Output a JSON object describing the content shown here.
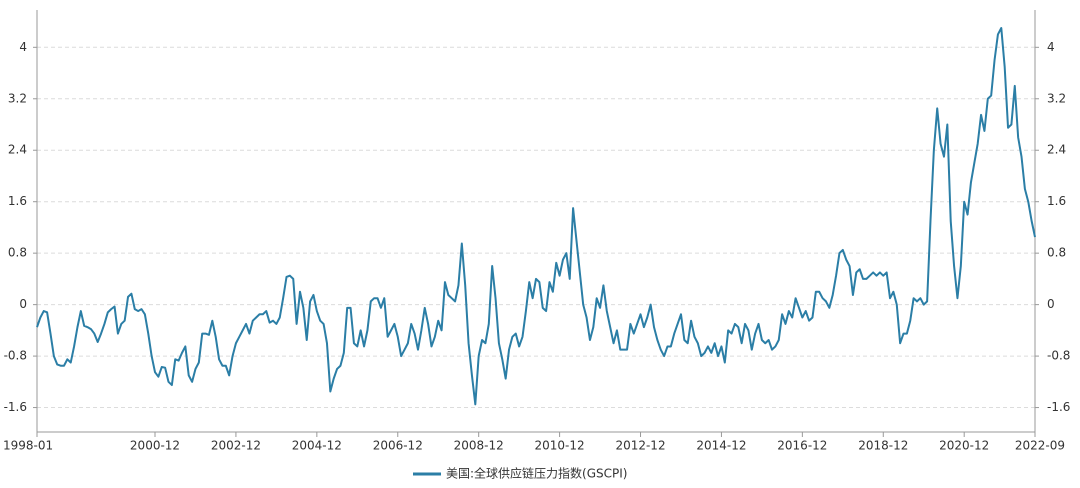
{
  "chart_data": {
    "type": "line",
    "x": [
      "1998-01",
      "1998-02",
      "1998-03",
      "1998-04",
      "1998-05",
      "1998-06",
      "1998-07",
      "1998-08",
      "1998-09",
      "1998-10",
      "1998-11",
      "1998-12",
      "1999-01",
      "1999-02",
      "1999-03",
      "1999-04",
      "1999-05",
      "1999-06",
      "1999-07",
      "1999-08",
      "1999-09",
      "1999-10",
      "1999-11",
      "1999-12",
      "2000-01",
      "2000-02",
      "2000-03",
      "2000-04",
      "2000-05",
      "2000-06",
      "2000-07",
      "2000-08",
      "2000-09",
      "2000-10",
      "2000-11",
      "2000-12",
      "2001-01",
      "2001-02",
      "2001-03",
      "2001-04",
      "2001-05",
      "2001-06",
      "2001-07",
      "2001-08",
      "2001-09",
      "2001-10",
      "2001-11",
      "2001-12",
      "2002-01",
      "2002-02",
      "2002-03",
      "2002-04",
      "2002-05",
      "2002-06",
      "2002-07",
      "2002-08",
      "2002-09",
      "2002-10",
      "2002-11",
      "2002-12",
      "2003-01",
      "2003-02",
      "2003-03",
      "2003-04",
      "2003-05",
      "2003-06",
      "2003-07",
      "2003-08",
      "2003-09",
      "2003-10",
      "2003-11",
      "2003-12",
      "2004-01",
      "2004-02",
      "2004-03",
      "2004-04",
      "2004-05",
      "2004-06",
      "2004-07",
      "2004-08",
      "2004-09",
      "2004-10",
      "2004-11",
      "2004-12",
      "2005-01",
      "2005-02",
      "2005-03",
      "2005-04",
      "2005-05",
      "2005-06",
      "2005-07",
      "2005-08",
      "2005-09",
      "2005-10",
      "2005-11",
      "2005-12",
      "2006-01",
      "2006-02",
      "2006-03",
      "2006-04",
      "2006-05",
      "2006-06",
      "2006-07",
      "2006-08",
      "2006-09",
      "2006-10",
      "2006-11",
      "2006-12",
      "2007-01",
      "2007-02",
      "2007-03",
      "2007-04",
      "2007-05",
      "2007-06",
      "2007-07",
      "2007-08",
      "2007-09",
      "2007-10",
      "2007-11",
      "2007-12",
      "2008-01",
      "2008-02",
      "2008-03",
      "2008-04",
      "2008-05",
      "2008-06",
      "2008-07",
      "2008-08",
      "2008-09",
      "2008-10",
      "2008-11",
      "2008-12",
      "2009-01",
      "2009-02",
      "2009-03",
      "2009-04",
      "2009-05",
      "2009-06",
      "2009-07",
      "2009-08",
      "2009-09",
      "2009-10",
      "2009-11",
      "2009-12",
      "2010-01",
      "2010-02",
      "2010-03",
      "2010-04",
      "2010-05",
      "2010-06",
      "2010-07",
      "2010-08",
      "2010-09",
      "2010-10",
      "2010-11",
      "2010-12",
      "2011-01",
      "2011-02",
      "2011-03",
      "2011-04",
      "2011-05",
      "2011-06",
      "2011-07",
      "2011-08",
      "2011-09",
      "2011-10",
      "2011-11",
      "2011-12",
      "2012-01",
      "2012-02",
      "2012-03",
      "2012-04",
      "2012-05",
      "2012-06",
      "2012-07",
      "2012-08",
      "2012-09",
      "2012-10",
      "2012-11",
      "2012-12",
      "2013-01",
      "2013-02",
      "2013-03",
      "2013-04",
      "2013-05",
      "2013-06",
      "2013-07",
      "2013-08",
      "2013-09",
      "2013-10",
      "2013-11",
      "2013-12",
      "2014-01",
      "2014-02",
      "2014-03",
      "2014-04",
      "2014-05",
      "2014-06",
      "2014-07",
      "2014-08",
      "2014-09",
      "2014-10",
      "2014-11",
      "2014-12",
      "2015-01",
      "2015-02",
      "2015-03",
      "2015-04",
      "2015-05",
      "2015-06",
      "2015-07",
      "2015-08",
      "2015-09",
      "2015-10",
      "2015-11",
      "2015-12",
      "2016-01",
      "2016-02",
      "2016-03",
      "2016-04",
      "2016-05",
      "2016-06",
      "2016-07",
      "2016-08",
      "2016-09",
      "2016-10",
      "2016-11",
      "2016-12",
      "2017-01",
      "2017-02",
      "2017-03",
      "2017-04",
      "2017-05",
      "2017-06",
      "2017-07",
      "2017-08",
      "2017-09",
      "2017-10",
      "2017-11",
      "2017-12",
      "2018-01",
      "2018-02",
      "2018-03",
      "2018-04",
      "2018-05",
      "2018-06",
      "2018-07",
      "2018-08",
      "2018-09",
      "2018-10",
      "2018-11",
      "2018-12",
      "2019-01",
      "2019-02",
      "2019-03",
      "2019-04",
      "2019-05",
      "2019-06",
      "2019-07",
      "2019-08",
      "2019-09",
      "2019-10",
      "2019-11",
      "2019-12",
      "2020-01",
      "2020-02",
      "2020-03",
      "2020-04",
      "2020-05",
      "2020-06",
      "2020-07",
      "2020-08",
      "2020-09",
      "2020-10",
      "2020-11",
      "2020-12",
      "2021-01",
      "2021-02",
      "2021-03",
      "2021-04",
      "2021-05",
      "2021-06",
      "2021-07",
      "2021-08",
      "2021-09",
      "2021-10",
      "2021-11",
      "2021-12",
      "2022-01",
      "2022-02",
      "2022-03",
      "2022-04",
      "2022-05",
      "2022-06",
      "2022-07",
      "2022-08",
      "2022-09"
    ],
    "series": [
      {
        "name": "美国:全球供应链压力指数(GSCPI)",
        "color": "#2b7ea6",
        "values": [
          -0.35,
          -0.2,
          -0.1,
          -0.12,
          -0.45,
          -0.8,
          -0.93,
          -0.95,
          -0.95,
          -0.85,
          -0.9,
          -0.65,
          -0.35,
          -0.1,
          -0.33,
          -0.35,
          -0.38,
          -0.45,
          -0.58,
          -0.45,
          -0.3,
          -0.12,
          -0.07,
          -0.03,
          -0.45,
          -0.3,
          -0.25,
          0.12,
          0.17,
          -0.07,
          -0.1,
          -0.07,
          -0.15,
          -0.45,
          -0.8,
          -1.05,
          -1.12,
          -0.97,
          -0.98,
          -1.2,
          -1.25,
          -0.85,
          -0.87,
          -0.75,
          -0.65,
          -1.1,
          -1.2,
          -1.0,
          -0.9,
          -0.45,
          -0.45,
          -0.47,
          -0.25,
          -0.5,
          -0.85,
          -0.95,
          -0.95,
          -1.1,
          -0.8,
          -0.6,
          -0.5,
          -0.4,
          -0.3,
          -0.45,
          -0.25,
          -0.2,
          -0.15,
          -0.15,
          -0.1,
          -0.28,
          -0.25,
          -0.3,
          -0.2,
          0.1,
          0.43,
          0.45,
          0.4,
          -0.3,
          0.2,
          -0.05,
          -0.55,
          0.05,
          0.15,
          -0.1,
          -0.25,
          -0.3,
          -0.6,
          -1.35,
          -1.15,
          -1.0,
          -0.95,
          -0.75,
          -0.05,
          -0.05,
          -0.6,
          -0.65,
          -0.4,
          -0.65,
          -0.4,
          0.05,
          0.1,
          0.1,
          -0.05,
          0.1,
          -0.5,
          -0.4,
          -0.3,
          -0.5,
          -0.8,
          -0.7,
          -0.6,
          -0.3,
          -0.45,
          -0.7,
          -0.4,
          -0.05,
          -0.3,
          -0.65,
          -0.5,
          -0.25,
          -0.4,
          0.35,
          0.15,
          0.1,
          0.05,
          0.3,
          0.95,
          0.3,
          -0.6,
          -1.1,
          -1.55,
          -0.8,
          -0.55,
          -0.6,
          -0.3,
          0.6,
          0.1,
          -0.6,
          -0.85,
          -1.15,
          -0.7,
          -0.5,
          -0.45,
          -0.65,
          -0.5,
          -0.1,
          0.35,
          0.1,
          0.4,
          0.35,
          -0.05,
          -0.1,
          0.35,
          0.2,
          0.65,
          0.45,
          0.7,
          0.8,
          0.4,
          1.5,
          1.0,
          0.5,
          0.0,
          -0.2,
          -0.55,
          -0.35,
          0.1,
          -0.05,
          0.3,
          -0.1,
          -0.35,
          -0.6,
          -0.4,
          -0.7,
          -0.7,
          -0.7,
          -0.3,
          -0.45,
          -0.3,
          -0.15,
          -0.35,
          -0.2,
          0.0,
          -0.35,
          -0.55,
          -0.7,
          -0.8,
          -0.65,
          -0.65,
          -0.45,
          -0.3,
          -0.15,
          -0.55,
          -0.6,
          -0.25,
          -0.5,
          -0.6,
          -0.8,
          -0.75,
          -0.65,
          -0.75,
          -0.6,
          -0.8,
          -0.65,
          -0.9,
          -0.4,
          -0.45,
          -0.3,
          -0.35,
          -0.6,
          -0.3,
          -0.4,
          -0.7,
          -0.45,
          -0.3,
          -0.55,
          -0.6,
          -0.55,
          -0.7,
          -0.65,
          -0.55,
          -0.15,
          -0.3,
          -0.1,
          -0.2,
          0.1,
          -0.05,
          -0.2,
          -0.1,
          -0.25,
          -0.2,
          0.2,
          0.2,
          0.1,
          0.05,
          -0.05,
          0.15,
          0.45,
          0.8,
          0.85,
          0.7,
          0.6,
          0.15,
          0.5,
          0.55,
          0.4,
          0.4,
          0.45,
          0.5,
          0.45,
          0.5,
          0.45,
          0.5,
          0.1,
          0.2,
          0.0,
          -0.6,
          -0.45,
          -0.45,
          -0.25,
          0.1,
          0.05,
          0.1,
          0.0,
          0.05,
          1.3,
          2.4,
          3.05,
          2.5,
          2.3,
          2.8,
          1.3,
          0.6,
          0.1,
          0.6,
          1.6,
          1.4,
          1.9,
          2.2,
          2.5,
          2.95,
          2.7,
          3.2,
          3.25,
          3.8,
          4.2,
          4.3,
          3.7,
          2.75,
          2.8,
          3.4,
          2.6,
          2.3,
          1.8,
          1.6,
          1.3,
          1.05
        ]
      }
    ],
    "xticks": [
      "1998-01",
      "2000-12",
      "2002-12",
      "2004-12",
      "2006-12",
      "2008-12",
      "2010-12",
      "2012-12",
      "2014-12",
      "2016-12",
      "2018-12",
      "2020-12",
      "2022-09"
    ],
    "ylim": [
      -1.98,
      4.58
    ],
    "yticks": [
      -1.6,
      -0.8,
      0,
      0.8,
      1.6,
      2.4,
      3.2,
      4
    ],
    "grid": true,
    "legend": "bottom"
  }
}
